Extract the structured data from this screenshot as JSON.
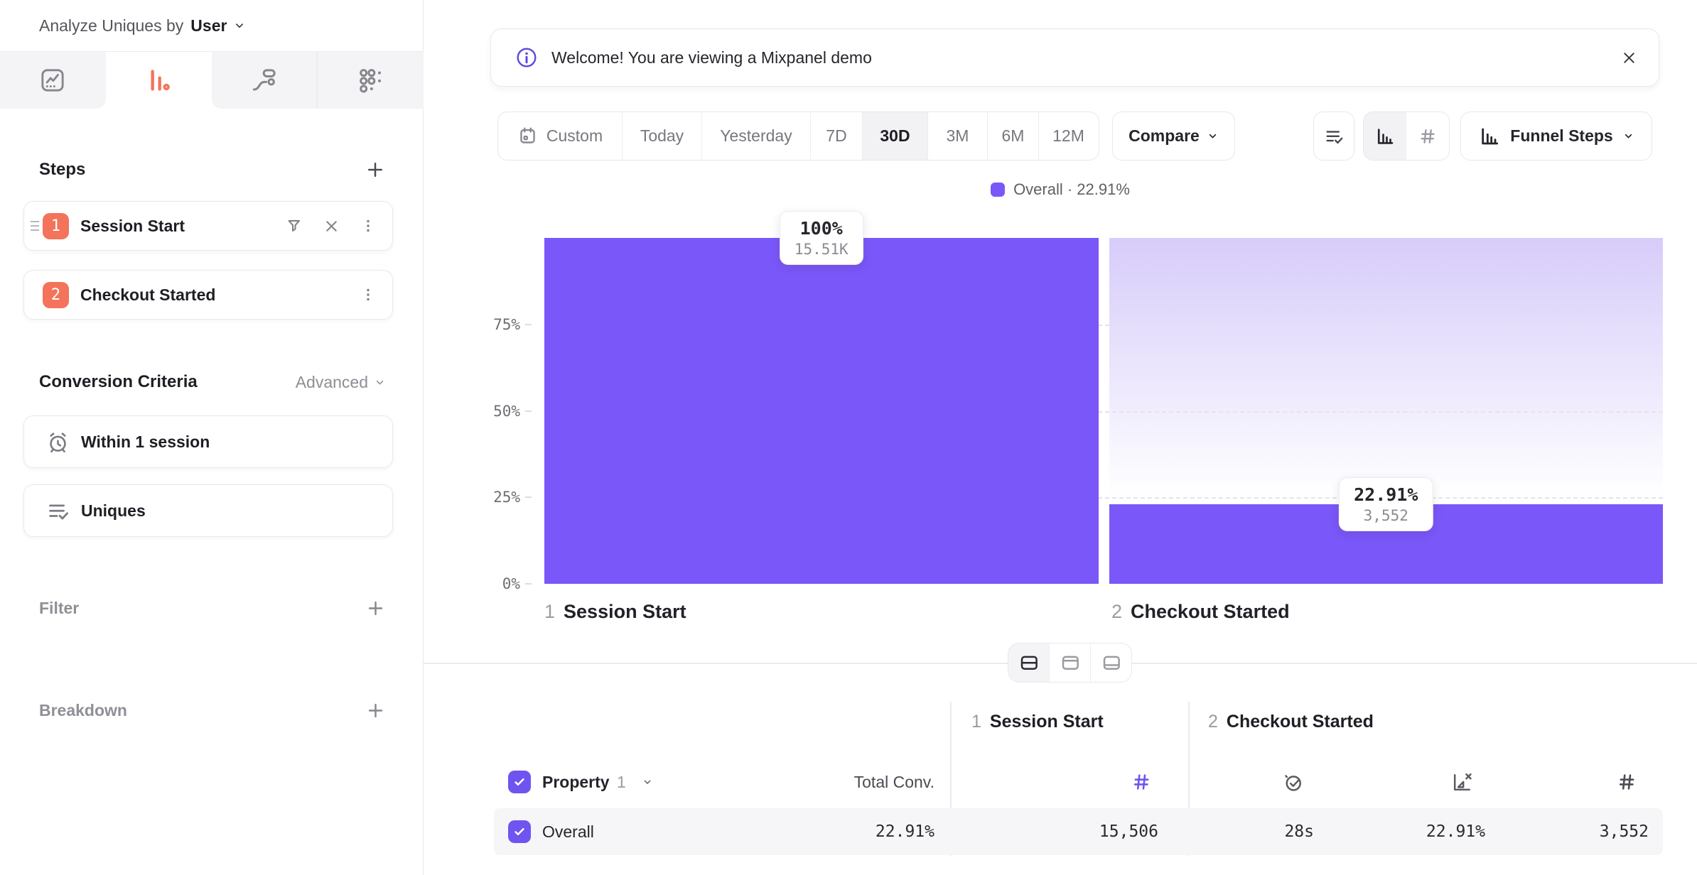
{
  "colors": {
    "bar_purple": "#7A57F8",
    "accent_purple": "#6F54F0",
    "step_orange": "#F3735B",
    "info_purple": "#5A49E0"
  },
  "sidebar": {
    "analyze": {
      "label": "Analyze Uniques by",
      "value": "User"
    },
    "tabs": [
      {
        "name": "insights",
        "active": false
      },
      {
        "name": "funnels",
        "active": true
      },
      {
        "name": "flows",
        "active": false
      },
      {
        "name": "retention",
        "active": false
      }
    ],
    "steps": {
      "title": "Steps",
      "items": [
        {
          "index": "1",
          "label": "Session Start"
        },
        {
          "index": "2",
          "label": "Checkout Started"
        }
      ]
    },
    "conversion": {
      "title": "Conversion Criteria",
      "advanced": "Advanced",
      "window": "Within 1 session",
      "counting": "Uniques"
    },
    "filter": {
      "label": "Filter"
    },
    "breakdown": {
      "label": "Breakdown"
    }
  },
  "banner": {
    "message": "Welcome! You are viewing a Mixpanel demo"
  },
  "toolbar": {
    "ranges": [
      "Custom",
      "Today",
      "Yesterday",
      "7D",
      "30D",
      "3M",
      "6M",
      "12M"
    ],
    "selected": "30D",
    "compare": "Compare",
    "view": "Funnel Steps"
  },
  "legend": {
    "text": "Overall · 22.91%"
  },
  "chart_data": {
    "type": "bar",
    "title": "",
    "categories": [
      "1 Session Start",
      "2 Checkout Started"
    ],
    "x_labels": [
      {
        "num": "1",
        "label": "Session Start"
      },
      {
        "num": "2",
        "label": "Checkout Started"
      }
    ],
    "series": [
      {
        "name": "Overall",
        "values_pct": [
          100,
          22.91
        ],
        "counts": [
          15506,
          3552
        ]
      }
    ],
    "tooltips": [
      {
        "pct": "100%",
        "count": "15.51K"
      },
      {
        "pct": "22.91%",
        "count": "3,552"
      }
    ],
    "yticks": [
      "75%",
      "50%",
      "25%",
      "0%"
    ],
    "ylim": [
      0,
      100
    ],
    "grid": true,
    "legend_position": "top"
  },
  "table": {
    "groups": [
      {
        "index": "1",
        "label": "Session Start"
      },
      {
        "index": "2",
        "label": "Checkout Started"
      }
    ],
    "property": {
      "label": "Property",
      "index": "1"
    },
    "total_conv": "Total Conv.",
    "rows": [
      {
        "label": "Overall",
        "total_conv": "22.91%",
        "step1_count": "15,506",
        "avg_time": "28s",
        "conv_rate": "22.91%",
        "step2_count": "3,552"
      }
    ]
  }
}
